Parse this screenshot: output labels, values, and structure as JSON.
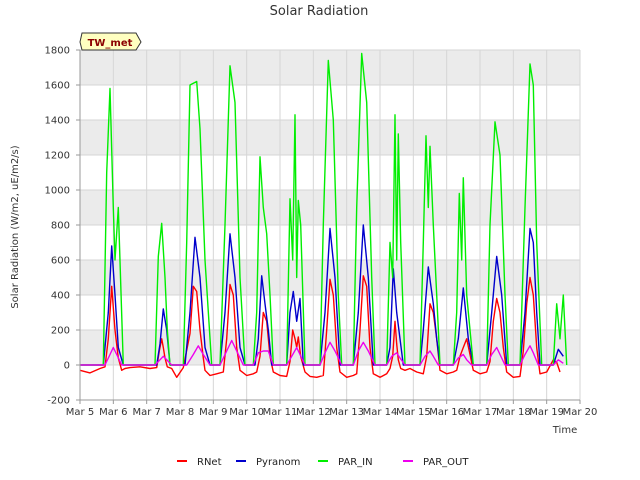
{
  "chart_data": {
    "type": "line",
    "title": "Solar Radiation",
    "xlabel": "Time",
    "ylabel": "Solar Radiation (W/m2, uE/m2/s)",
    "station_label": "TW_met",
    "xlim": [
      5,
      20
    ],
    "ylim": [
      -200,
      1800
    ],
    "x_ticks": [
      5,
      6,
      7,
      8,
      9,
      10,
      11,
      12,
      13,
      14,
      15,
      16,
      17,
      18,
      19,
      20
    ],
    "x_tick_labels": [
      "Mar 5",
      "Mar 6",
      "Mar 7",
      "Mar 8",
      "Mar 9",
      "Mar 10",
      "Mar 11",
      "Mar 12",
      "Mar 13",
      "Mar 14",
      "Mar 15",
      "Mar 16",
      "Mar 17",
      "Mar 18",
      "Mar 19",
      "Mar 20"
    ],
    "y_ticks": [
      -200,
      0,
      200,
      400,
      600,
      800,
      1000,
      1200,
      1400,
      1600,
      1800
    ],
    "grid": true,
    "legend_position": "bottom",
    "series": [
      {
        "name": "RNet",
        "color": "#ff0000",
        "x": [
          5.0,
          5.3,
          5.6,
          5.75,
          5.85,
          5.95,
          6.05,
          6.15,
          6.25,
          6.35,
          6.5,
          6.8,
          7.1,
          7.3,
          7.38,
          7.45,
          7.5,
          7.55,
          7.62,
          7.75,
          7.9,
          8.1,
          8.3,
          8.4,
          8.5,
          8.6,
          8.7,
          8.75,
          8.9,
          9.1,
          9.3,
          9.4,
          9.5,
          9.6,
          9.7,
          9.8,
          10.0,
          10.2,
          10.3,
          10.4,
          10.5,
          10.6,
          10.7,
          10.8,
          11.0,
          11.2,
          11.3,
          11.38,
          11.45,
          11.5,
          11.55,
          11.62,
          11.75,
          11.9,
          12.1,
          12.3,
          12.4,
          12.5,
          12.6,
          12.7,
          12.8,
          13.0,
          13.2,
          13.3,
          13.4,
          13.5,
          13.6,
          13.7,
          13.8,
          14.0,
          14.2,
          14.3,
          14.38,
          14.45,
          14.5,
          14.55,
          14.62,
          14.75,
          14.9,
          15.1,
          15.3,
          15.4,
          15.5,
          15.6,
          15.7,
          15.8,
          16.0,
          16.2,
          16.3,
          16.4,
          16.5,
          16.6,
          16.7,
          16.8,
          17.0,
          17.2,
          17.3,
          17.4,
          17.5,
          17.6,
          17.7,
          17.8,
          18.0,
          18.2,
          18.3,
          18.4,
          18.5,
          18.6,
          18.7,
          18.8,
          19.0,
          19.2,
          19.3,
          19.4
        ],
        "y": [
          -30,
          -45,
          -20,
          -10,
          150,
          450,
          200,
          40,
          -30,
          -20,
          -15,
          -10,
          -20,
          -15,
          80,
          150,
          100,
          40,
          -10,
          -20,
          -70,
          -15,
          180,
          450,
          420,
          200,
          40,
          -30,
          -60,
          -50,
          -40,
          150,
          460,
          400,
          100,
          -30,
          -60,
          -50,
          -40,
          50,
          300,
          250,
          50,
          -40,
          -60,
          -65,
          20,
          200,
          150,
          100,
          160,
          50,
          -40,
          -65,
          -70,
          -60,
          200,
          490,
          400,
          100,
          -40,
          -70,
          -60,
          -50,
          200,
          510,
          450,
          100,
          -50,
          -70,
          -50,
          -20,
          50,
          250,
          120,
          30,
          -20,
          -30,
          -20,
          -40,
          -50,
          50,
          350,
          300,
          150,
          -30,
          -50,
          -40,
          -30,
          50,
          100,
          150,
          60,
          -30,
          -50,
          -40,
          20,
          250,
          380,
          300,
          100,
          -40,
          -70,
          -65,
          80,
          350,
          500,
          400,
          100,
          -50,
          -40,
          30,
          15,
          -40
        ]
      },
      {
        "name": "Pyranom",
        "color": "#0000cc",
        "x": [
          5.0,
          5.7,
          5.85,
          5.95,
          6.05,
          6.15,
          6.3,
          6.9,
          7.3,
          7.4,
          7.5,
          7.6,
          7.7,
          8.15,
          8.3,
          8.45,
          8.6,
          8.75,
          8.9,
          9.2,
          9.35,
          9.5,
          9.65,
          9.8,
          9.95,
          10.25,
          10.35,
          10.45,
          10.55,
          10.65,
          10.75,
          11.2,
          11.3,
          11.4,
          11.5,
          11.6,
          11.7,
          12.2,
          12.35,
          12.5,
          12.65,
          12.8,
          13.2,
          13.35,
          13.5,
          13.65,
          13.8,
          14.2,
          14.3,
          14.4,
          14.5,
          14.6,
          14.7,
          15.2,
          15.3,
          15.45,
          15.6,
          15.7,
          15.8,
          16.2,
          16.35,
          16.5,
          16.65,
          16.8,
          17.2,
          17.35,
          17.5,
          17.65,
          17.8,
          18.2,
          18.35,
          18.5,
          18.6,
          18.7,
          18.8,
          19.2,
          19.35,
          19.5
        ],
        "y": [
          0,
          0,
          300,
          680,
          400,
          100,
          0,
          0,
          0,
          120,
          320,
          200,
          0,
          0,
          300,
          730,
          500,
          100,
          0,
          0,
          300,
          750,
          500,
          100,
          0,
          0,
          150,
          510,
          350,
          200,
          0,
          0,
          300,
          420,
          250,
          380,
          0,
          0,
          300,
          780,
          500,
          0,
          0,
          300,
          800,
          500,
          0,
          0,
          100,
          550,
          300,
          150,
          0,
          0,
          200,
          560,
          350,
          150,
          0,
          0,
          150,
          440,
          150,
          0,
          0,
          300,
          620,
          400,
          0,
          0,
          300,
          780,
          700,
          300,
          0,
          0,
          90,
          50
        ]
      },
      {
        "name": "PAR_IN",
        "color": "#00ee00",
        "x": [
          5.0,
          5.7,
          5.8,
          5.9,
          6.0,
          6.05,
          6.15,
          6.3,
          6.95,
          7.25,
          7.35,
          7.45,
          7.55,
          7.62,
          7.7,
          8.1,
          8.2,
          8.3,
          8.5,
          8.6,
          8.75,
          8.95,
          9.2,
          9.35,
          9.5,
          9.65,
          9.8,
          9.95,
          10.2,
          10.3,
          10.4,
          10.5,
          10.6,
          10.7,
          10.8,
          11.2,
          11.3,
          11.38,
          11.45,
          11.5,
          11.55,
          11.62,
          11.75,
          12.2,
          12.3,
          12.45,
          12.6,
          12.75,
          12.85,
          13.2,
          13.3,
          13.45,
          13.6,
          13.75,
          13.85,
          14.2,
          14.3,
          14.38,
          14.45,
          14.5,
          14.55,
          14.62,
          14.75,
          15.2,
          15.3,
          15.38,
          15.45,
          15.5,
          15.6,
          15.7,
          15.8,
          16.2,
          16.3,
          16.38,
          16.45,
          16.5,
          16.6,
          16.7,
          16.8,
          17.2,
          17.3,
          17.45,
          17.6,
          17.75,
          17.85,
          18.2,
          18.35,
          18.5,
          18.6,
          18.7,
          18.85,
          19.2,
          19.3,
          19.4,
          19.5,
          19.6
        ],
        "y": [
          0,
          0,
          1100,
          1580,
          900,
          600,
          900,
          0,
          0,
          0,
          620,
          810,
          500,
          200,
          0,
          0,
          700,
          1600,
          1620,
          1350,
          600,
          0,
          0,
          800,
          1710,
          1500,
          500,
          0,
          0,
          300,
          1190,
          900,
          750,
          400,
          0,
          0,
          950,
          600,
          1430,
          500,
          940,
          800,
          0,
          0,
          800,
          1740,
          1400,
          400,
          0,
          0,
          900,
          1780,
          1500,
          500,
          0,
          0,
          700,
          500,
          1430,
          600,
          1320,
          700,
          0,
          0,
          700,
          1310,
          900,
          1250,
          800,
          400,
          0,
          0,
          300,
          980,
          600,
          1070,
          400,
          200,
          0,
          0,
          800,
          1390,
          1200,
          400,
          0,
          0,
          900,
          1720,
          1600,
          700,
          0,
          0,
          350,
          150,
          400,
          0
        ]
      },
      {
        "name": "PAR_OUT",
        "color": "#ee00ee",
        "x": [
          5.0,
          5.75,
          5.9,
          6.0,
          6.1,
          6.25,
          7.25,
          7.4,
          7.5,
          7.6,
          7.75,
          8.2,
          8.4,
          8.55,
          8.7,
          8.9,
          9.2,
          9.4,
          9.55,
          9.7,
          9.9,
          10.2,
          10.35,
          10.5,
          10.65,
          10.8,
          11.2,
          11.35,
          11.5,
          11.6,
          11.75,
          12.2,
          12.35,
          12.5,
          12.65,
          12.85,
          13.2,
          13.35,
          13.5,
          13.65,
          13.85,
          14.2,
          14.35,
          14.5,
          14.6,
          14.75,
          15.2,
          15.35,
          15.5,
          15.6,
          15.75,
          16.2,
          16.35,
          16.5,
          16.6,
          16.75,
          17.2,
          17.35,
          17.5,
          17.6,
          17.75,
          18.2,
          18.35,
          18.5,
          18.6,
          18.75,
          19.2,
          19.35,
          19.5
        ],
        "y": [
          0,
          0,
          60,
          100,
          60,
          0,
          0,
          30,
          50,
          30,
          0,
          0,
          60,
          110,
          60,
          0,
          0,
          80,
          140,
          80,
          0,
          0,
          70,
          80,
          80,
          0,
          0,
          50,
          100,
          60,
          0,
          0,
          70,
          130,
          80,
          0,
          0,
          80,
          130,
          80,
          0,
          0,
          50,
          70,
          40,
          0,
          0,
          50,
          80,
          50,
          0,
          0,
          40,
          60,
          30,
          0,
          0,
          60,
          100,
          60,
          0,
          0,
          60,
          110,
          70,
          0,
          0,
          30,
          10
        ]
      }
    ]
  }
}
